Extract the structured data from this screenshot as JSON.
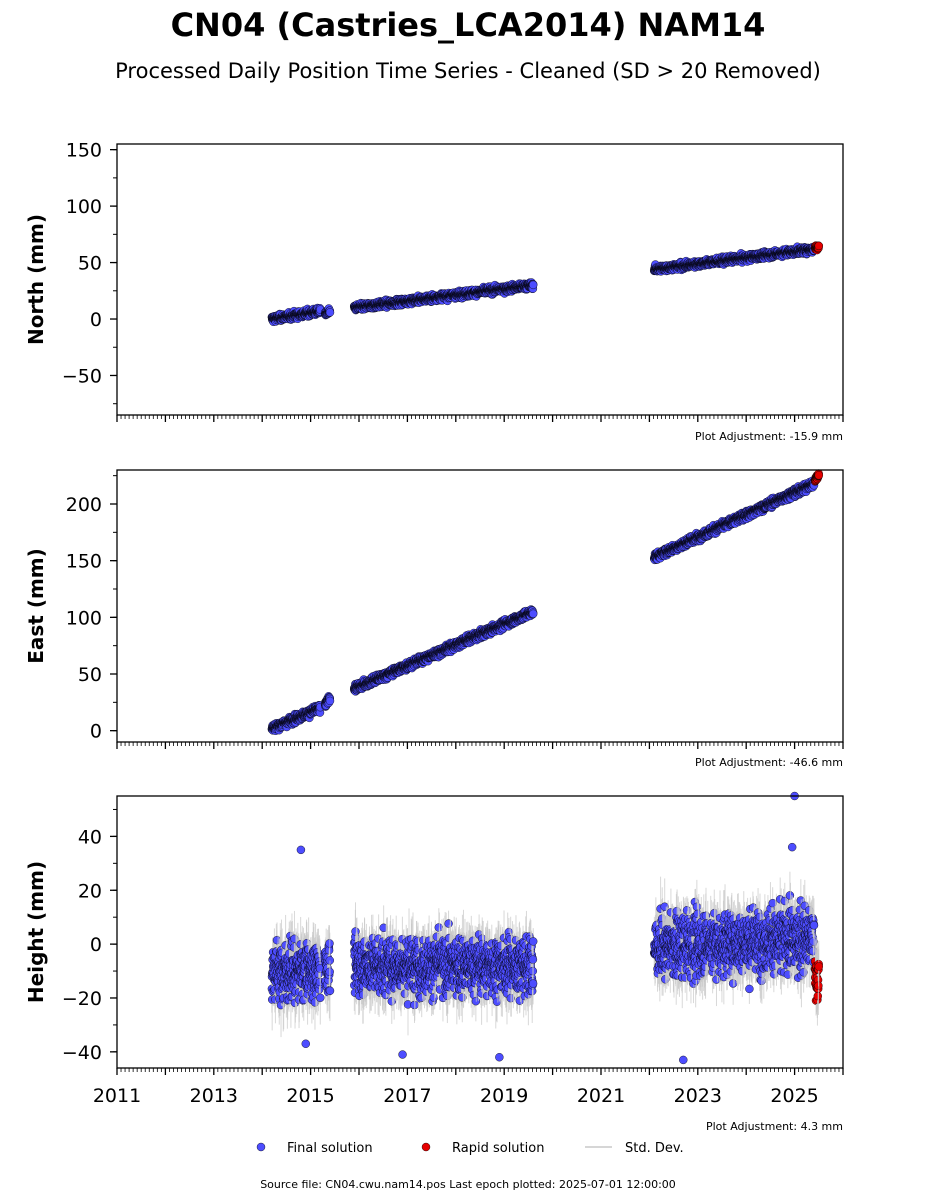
{
  "figure": {
    "title": "CN04 (Castries_LCA2014) NAM14",
    "subtitle": "Processed Daily Position Time Series - Cleaned (SD > 20 Removed)",
    "footer": "Source file: CN04.cwu.nam14.pos  Last epoch plotted: 2025-07-01 12:00:00"
  },
  "legend": {
    "final": "Final solution",
    "rapid": "Rapid solution",
    "std": "Std. Dev."
  },
  "colors": {
    "final": "#4d4dff",
    "rapid": "#e60000",
    "std": "#c8c8c8",
    "marker_edge": "#000000"
  },
  "chart_data": [
    {
      "type": "scatter",
      "ylabel": "North (mm)",
      "adjustment": "Plot Adjustment: -15.9 mm",
      "xlim": [
        2011,
        2026
      ],
      "ylim": [
        -85,
        155
      ],
      "yticks": [
        "150",
        "100",
        "50",
        "0",
        "−50"
      ],
      "ytick_values": [
        150,
        100,
        50,
        0,
        -50
      ],
      "grid": false,
      "series": [
        {
          "name": "Final solution",
          "segments": [
            {
              "x": [
                2014.2,
                2015.2
              ],
              "y": [
                0,
                7
              ],
              "scatter": 2.5
            },
            {
              "x": [
                2015.3,
                2015.4
              ],
              "y": [
                5,
                7
              ],
              "scatter": 2
            },
            {
              "x": [
                2015.9,
                2019.6
              ],
              "y": [
                10,
                30
              ],
              "scatter": 2.5
            },
            {
              "x": [
                2022.1,
                2025.4
              ],
              "y": [
                44,
                62
              ],
              "scatter": 2.5
            }
          ]
        },
        {
          "name": "Rapid solution",
          "segments": [
            {
              "x": [
                2025.42,
                2025.5
              ],
              "y": [
                63,
                64
              ],
              "scatter": 2
            }
          ]
        }
      ]
    },
    {
      "type": "scatter",
      "ylabel": "East (mm)",
      "adjustment": "Plot Adjustment: -46.6 mm",
      "xlim": [
        2011,
        2026
      ],
      "ylim": [
        -10,
        230
      ],
      "yticks": [
        "200",
        "150",
        "100",
        "50",
        "0"
      ],
      "ytick_values": [
        200,
        150,
        100,
        50,
        0
      ],
      "grid": false,
      "series": [
        {
          "name": "Final solution",
          "segments": [
            {
              "x": [
                2014.2,
                2015.2
              ],
              "y": [
                2,
                20
              ],
              "scatter": 3
            },
            {
              "x": [
                2015.3,
                2015.4
              ],
              "y": [
                22,
                30
              ],
              "scatter": 3
            },
            {
              "x": [
                2015.9,
                2019.6
              ],
              "y": [
                37,
                105
              ],
              "scatter": 3
            },
            {
              "x": [
                2022.1,
                2025.4
              ],
              "y": [
                153,
                218
              ],
              "scatter": 3
            }
          ]
        },
        {
          "name": "Rapid solution",
          "segments": [
            {
              "x": [
                2025.42,
                2025.5
              ],
              "y": [
                221,
                226
              ],
              "scatter": 2
            }
          ]
        }
      ]
    },
    {
      "type": "scatter",
      "ylabel": "Height (mm)",
      "adjustment": "Plot Adjustment: 4.3 mm",
      "xlim": [
        2011,
        2026
      ],
      "ylim": [
        -46,
        55
      ],
      "yticks": [
        "40",
        "20",
        "0",
        "−20",
        "−40"
      ],
      "ytick_values": [
        40,
        20,
        0,
        -20,
        -40
      ],
      "xticks": [
        "2011",
        "2013",
        "2015",
        "2017",
        "2019",
        "2021",
        "2023",
        "2025"
      ],
      "xtick_values": [
        2011,
        2013,
        2015,
        2017,
        2019,
        2021,
        2023,
        2025
      ],
      "grid": false,
      "series": [
        {
          "name": "Final solution",
          "segments": [
            {
              "x": [
                2014.2,
                2015.2
              ],
              "y": [
                -10,
                -10
              ],
              "scatter": 9
            },
            {
              "x": [
                2015.3,
                2015.4
              ],
              "y": [
                -8,
                -8
              ],
              "scatter": 8
            },
            {
              "x": [
                2015.9,
                2019.6
              ],
              "y": [
                -8,
                -8
              ],
              "scatter": 9
            },
            {
              "x": [
                2022.1,
                2025.4
              ],
              "y": [
                -1,
                2
              ],
              "scatter": 10
            }
          ]
        },
        {
          "name": "Rapid solution",
          "segments": [
            {
              "x": [
                2025.42,
                2025.5
              ],
              "y": [
                -12,
                -12
              ],
              "scatter": 7
            }
          ]
        }
      ],
      "outliers": [
        [
          2014.8,
          35
        ],
        [
          2025.0,
          55
        ],
        [
          2024.95,
          36
        ],
        [
          2014.9,
          -37
        ],
        [
          2022.7,
          -43
        ],
        [
          2018.9,
          -42
        ],
        [
          2016.9,
          -41
        ]
      ]
    }
  ]
}
